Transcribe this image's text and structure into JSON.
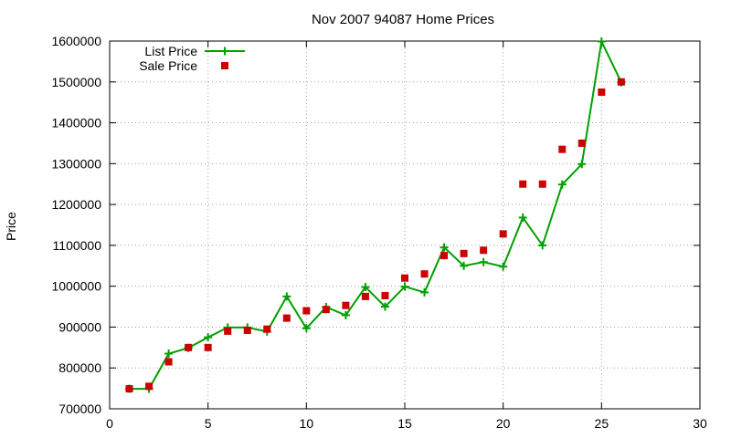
{
  "chart_data": {
    "type": "line",
    "title": "Nov 2007 94087 Home Prices",
    "xlabel": "",
    "ylabel": "Price",
    "xlim": [
      0,
      30
    ],
    "ylim": [
      700000,
      1600000
    ],
    "xticks": [
      0,
      5,
      10,
      15,
      20,
      25,
      30
    ],
    "yticks": [
      700000,
      800000,
      900000,
      1000000,
      1100000,
      1200000,
      1300000,
      1400000,
      1500000,
      1600000
    ],
    "grid": true,
    "legend_position": "top-left",
    "series": [
      {
        "name": "List Price",
        "style": "lines+points",
        "marker": "plus",
        "color": "#00a000",
        "x": [
          1,
          2,
          3,
          4,
          5,
          6,
          7,
          8,
          9,
          10,
          11,
          12,
          13,
          14,
          15,
          16,
          17,
          18,
          19,
          20,
          21,
          22,
          23,
          24,
          25,
          26
        ],
        "y": [
          749000,
          749000,
          835000,
          849000,
          875000,
          899000,
          899000,
          889000,
          975000,
          897000,
          949000,
          929000,
          998000,
          950000,
          999000,
          985000,
          1095000,
          1050000,
          1059000,
          1048000,
          1168000,
          1100000,
          1249000,
          1299000,
          1599000,
          1499000
        ]
      },
      {
        "name": "Sale Price",
        "style": "points",
        "marker": "square",
        "color": "#cc0000",
        "x": [
          1,
          2,
          3,
          4,
          5,
          6,
          7,
          8,
          9,
          10,
          11,
          12,
          13,
          14,
          15,
          16,
          17,
          18,
          19,
          20,
          21,
          22,
          23,
          24,
          25,
          26
        ],
        "y": [
          749000,
          755000,
          815000,
          850000,
          850000,
          890000,
          892000,
          895000,
          922000,
          940000,
          943000,
          953000,
          975000,
          977000,
          1020000,
          1030000,
          1075000,
          1080000,
          1088000,
          1128000,
          1250000,
          1250000,
          1335000,
          1350000,
          1475000,
          1500000
        ]
      }
    ]
  }
}
